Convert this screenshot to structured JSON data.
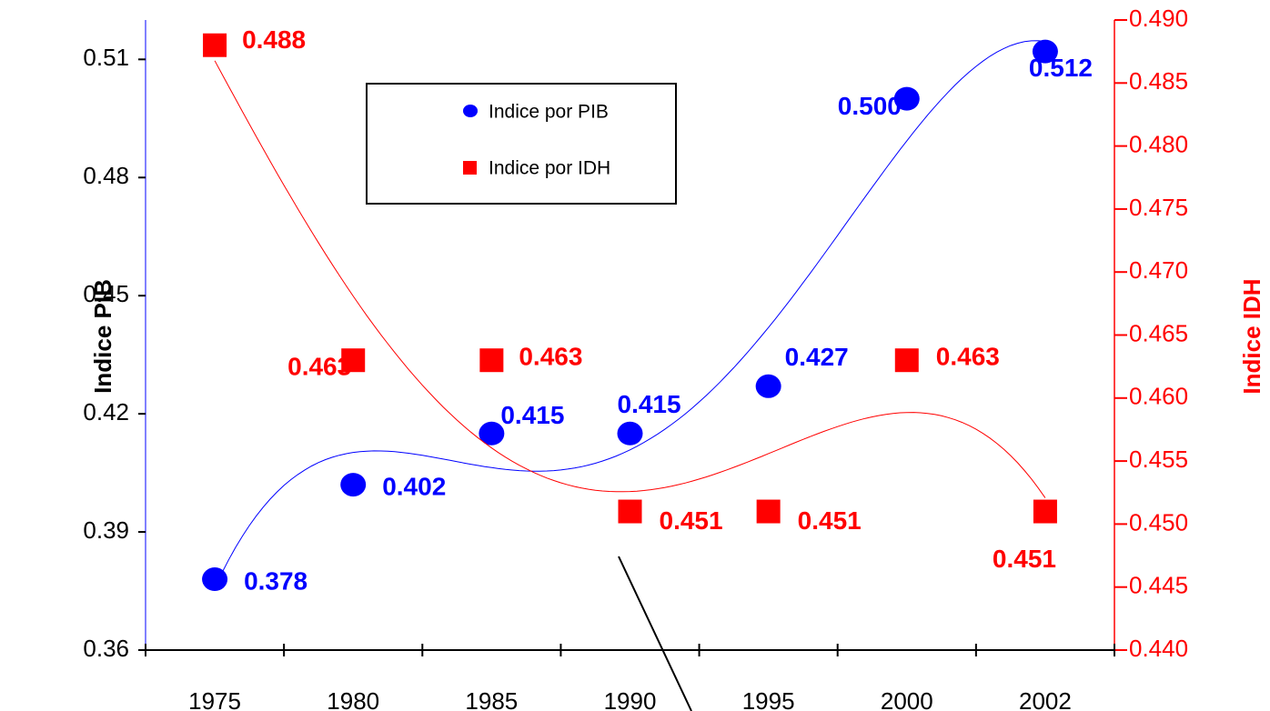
{
  "chart_data": {
    "type": "scatter",
    "categories": [
      "1975",
      "1980",
      "1985",
      "1990",
      "1995",
      "2000",
      "2002"
    ],
    "series": [
      {
        "name": "Indice por PIB",
        "color": "#0000ff",
        "axis": "y",
        "marker": "circle",
        "values": [
          0.378,
          0.402,
          0.415,
          0.415,
          0.427,
          0.5,
          0.512
        ],
        "value_labels": [
          "0.378",
          "0.402",
          "0.415",
          "0.415",
          "0.427",
          "0.500",
          "0.512"
        ]
      },
      {
        "name": "Indice por IDH",
        "color": "#ff0000",
        "axis": "y2",
        "marker": "square",
        "values": [
          0.488,
          0.463,
          0.463,
          0.451,
          0.451,
          0.463,
          0.451
        ],
        "value_labels": [
          "0.488",
          "0.463",
          "0.463",
          "0.451",
          "0.451",
          "0.463",
          "0.451"
        ]
      }
    ],
    "ylabel": "Indice PIB",
    "y2label": "Indice IDH",
    "ylim": [
      0.36,
      0.52
    ],
    "yticks": [
      0.36,
      0.39,
      0.42,
      0.45,
      0.48,
      0.51
    ],
    "y2lim": [
      0.44,
      0.49
    ],
    "y2ticks": [
      {
        "value": 0.44,
        "label": "0.440"
      },
      0.445,
      {
        "value": 0.45,
        "label": "0.450"
      },
      0.455,
      {
        "value": 0.46,
        "label": "0.460"
      },
      0.465,
      {
        "value": 0.47,
        "label": "0.470"
      },
      0.475,
      {
        "value": 0.48,
        "label": "0.480"
      },
      0.485,
      {
        "value": 0.49,
        "label": "0.490"
      }
    ],
    "trendline": true,
    "grid": false
  }
}
